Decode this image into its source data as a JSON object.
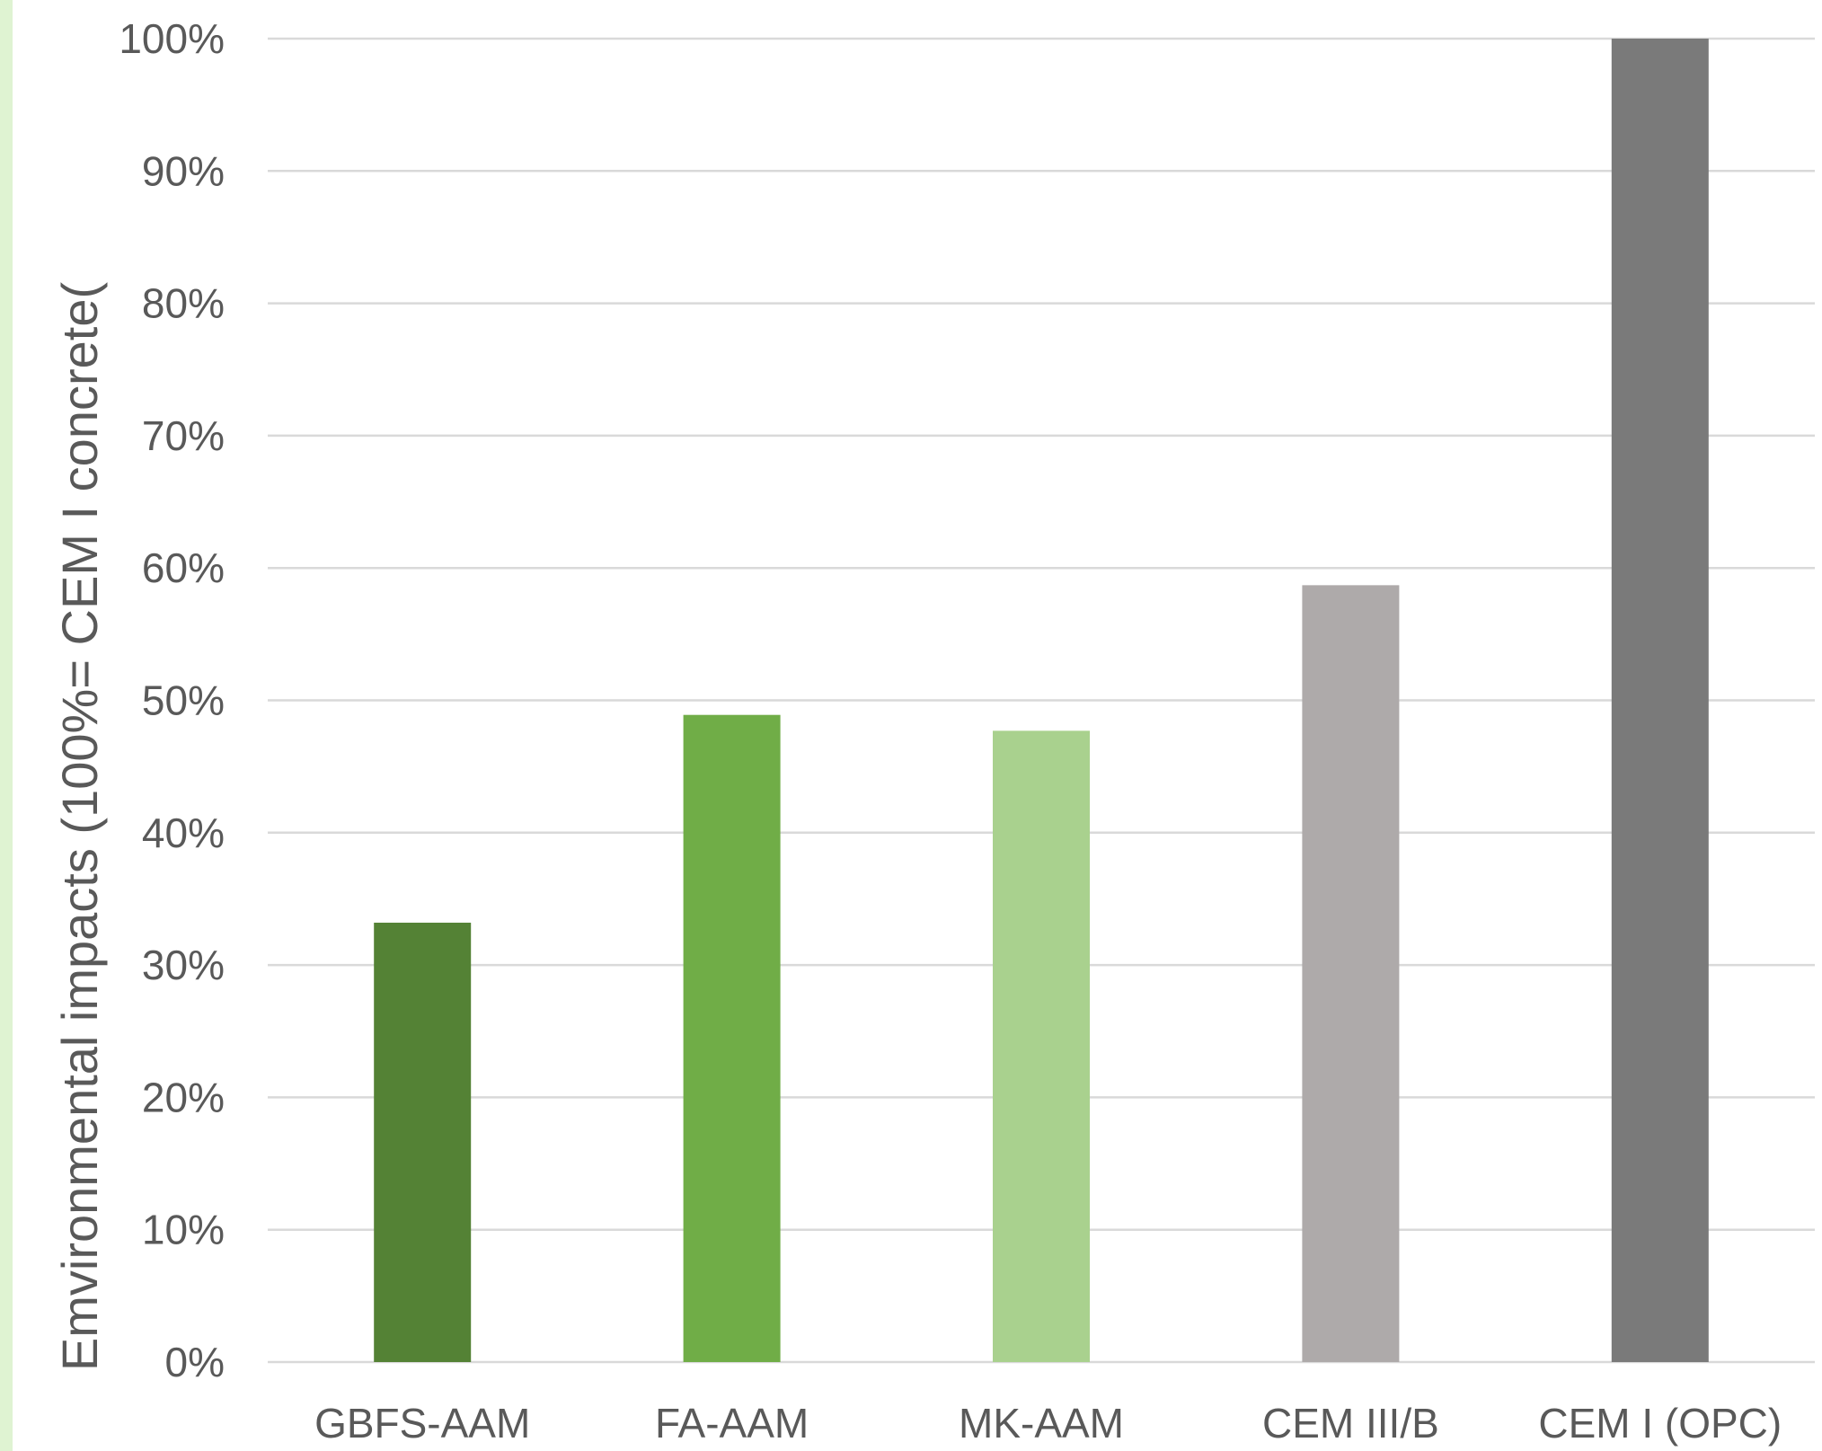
{
  "chart_data": {
    "type": "bar",
    "categories": [
      "GBFS-AAM",
      "FA-AAM",
      "MK-AAM",
      "CEM III/B",
      "CEM I (OPC)"
    ],
    "values": [
      33.2,
      48.9,
      47.7,
      58.7,
      100
    ],
    "colors": [
      "#548235",
      "#70ad47",
      "#a9d18e",
      "#aeaaaa",
      "#7a7a7a"
    ],
    "ylabel": "Emvironmental impacts (100%= CEM I concrete(",
    "xlabel": "",
    "title": "",
    "ylim": [
      0,
      100
    ],
    "yticks": [
      0,
      10,
      20,
      30,
      40,
      50,
      60,
      70,
      80,
      90,
      100
    ],
    "ytick_labels": [
      "0%",
      "10%",
      "20%",
      "30%",
      "40%",
      "50%",
      "60%",
      "70%",
      "80%",
      "90%",
      "100%"
    ],
    "grid": true,
    "legend": "none"
  }
}
